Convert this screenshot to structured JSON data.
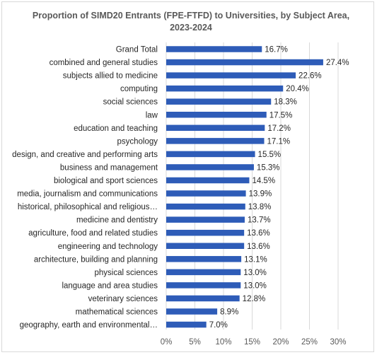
{
  "chart_data": {
    "type": "bar",
    "orientation": "horizontal",
    "title": "Proportion of SIMD20 Entrants (FPE-FTFD) to Universities, by Subject Area, 2023-2024",
    "xlabel": "",
    "ylabel": "",
    "xlim": [
      0,
      30
    ],
    "x_ticks": [
      "0%",
      "5%",
      "10%",
      "15%",
      "20%",
      "25%",
      "30%"
    ],
    "grid": "vertical",
    "legend": "none",
    "bar_color": "#2e5cb8",
    "categories": [
      "Grand Total",
      "combined and general studies",
      "subjects allied to medicine",
      "computing",
      "social sciences",
      "law",
      "education and teaching",
      "psychology",
      "design, and creative and performing arts",
      "business and management",
      "biological and sport sciences",
      "media, journalism and communications",
      "historical, philosophical and religious…",
      "medicine and dentistry",
      "agriculture, food and related studies",
      "engineering and technology",
      "architecture, building and planning",
      "physical sciences",
      "language and area studies",
      "veterinary sciences",
      "mathematical sciences",
      "geography, earth and environmental…"
    ],
    "values": [
      16.7,
      27.4,
      22.6,
      20.4,
      18.3,
      17.5,
      17.2,
      17.1,
      15.5,
      15.3,
      14.5,
      13.9,
      13.8,
      13.7,
      13.6,
      13.6,
      13.1,
      13.0,
      13.0,
      12.8,
      8.9,
      7.0
    ],
    "value_labels": [
      "16.7%",
      "27.4%",
      "22.6%",
      "20.4%",
      "18.3%",
      "17.5%",
      "17.2%",
      "17.1%",
      "15.5%",
      "15.3%",
      "14.5%",
      "13.9%",
      "13.8%",
      "13.7%",
      "13.6%",
      "13.6%",
      "13.1%",
      "13.0%",
      "13.0%",
      "12.8%",
      "8.9%",
      "7.0%"
    ]
  }
}
